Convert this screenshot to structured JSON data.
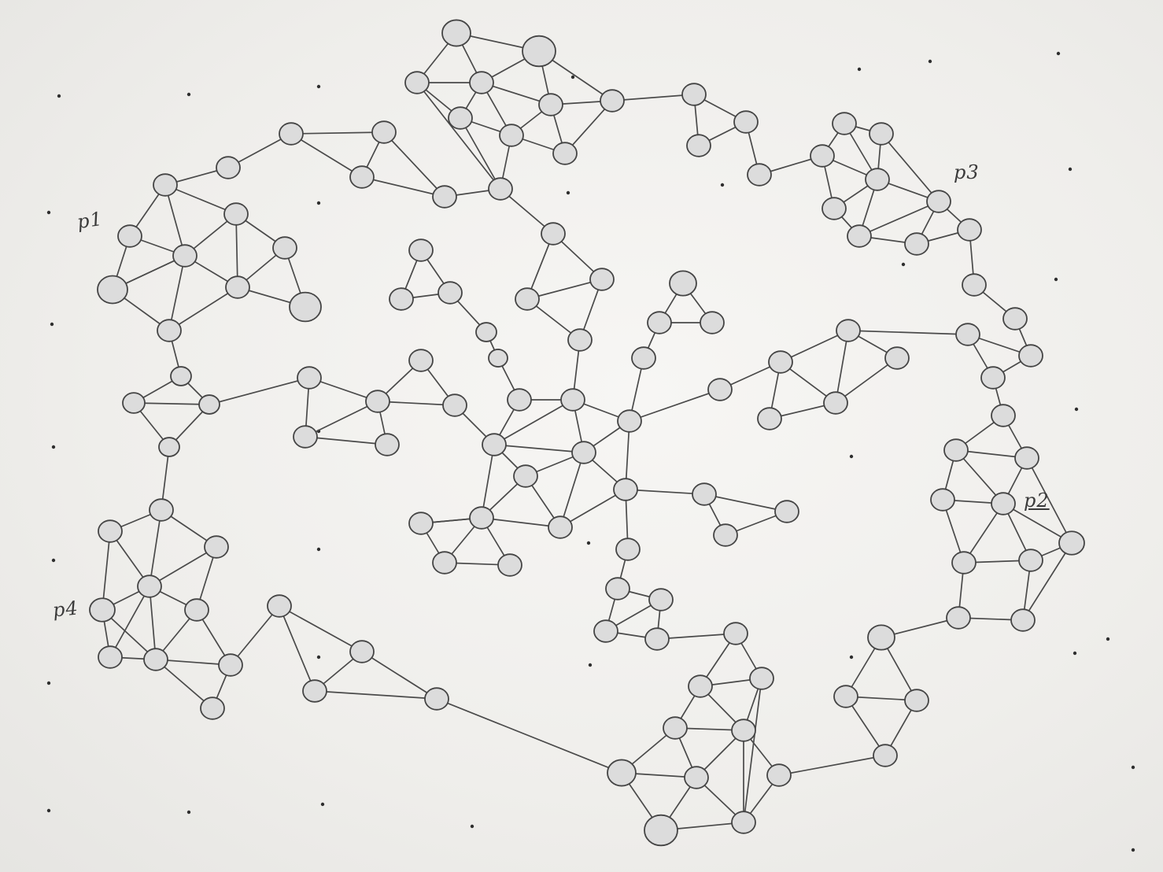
{
  "labels": {
    "p1": "p1",
    "p2": "p2",
    "p3": "p3",
    "p4": "p4"
  },
  "colors": {
    "paper": "#f1f0ee",
    "pencil": "#444444",
    "node_fill": "#dcdcdc"
  }
}
